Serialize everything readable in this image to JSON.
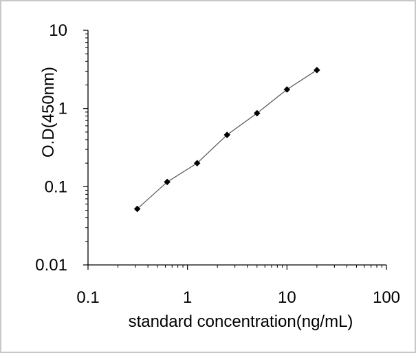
{
  "chart_data": {
    "type": "line",
    "title": "",
    "xlabel": "standard concentration(ng/mL)",
    "ylabel": "O.D(450nm)",
    "x_scale": "log",
    "y_scale": "log",
    "xlim": [
      0.1,
      100
    ],
    "ylim": [
      0.01,
      10
    ],
    "x_ticks": [
      {
        "value": 0.1,
        "label": "0.1"
      },
      {
        "value": 1,
        "label": "1"
      },
      {
        "value": 10,
        "label": "10"
      },
      {
        "value": 100,
        "label": "100"
      }
    ],
    "y_ticks": [
      {
        "value": 0.01,
        "label": "0.01"
      },
      {
        "value": 0.1,
        "label": "0.1"
      },
      {
        "value": 1,
        "label": "1"
      },
      {
        "value": 10,
        "label": "10"
      }
    ],
    "grid": false,
    "legend": "none",
    "series": [
      {
        "x": [
          0.3125,
          0.625,
          1.25,
          2.5,
          5,
          10,
          20
        ],
        "y": [
          0.052,
          0.115,
          0.2,
          0.46,
          0.87,
          1.75,
          3.1
        ],
        "color": "#555555",
        "marker": "diamond",
        "marker_color": "#000000"
      }
    ]
  }
}
